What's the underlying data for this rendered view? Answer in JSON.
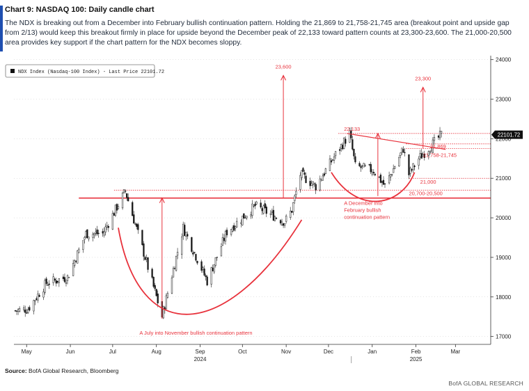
{
  "header": {
    "title": "Chart 9: NASDAQ 100: Daily candle chart",
    "description": "The NDX is breaking out from a December into February bullish continuation pattern. Holding the 21,869 to 21,758-21,745 area (breakout point and upside gap from 2/13) would keep this breakout firmly in place for upside beyond the December peak of 22,133 toward pattern counts at 23,300-23,600. The 21,000-20,500 area provides key support if the chart pattern for the NDX becomes sloppy."
  },
  "footer": {
    "source_label": "Source:",
    "source_text": "BofA Global Research, Bloomberg",
    "brand": "BofA GLOBAL RESEARCH"
  },
  "chart_data": {
    "type": "candlestick",
    "legend": "NDX Index (Nasdaq-100 Index) - Last Price 22101.72",
    "legend_position": "top-left",
    "last_price_label": "22101.72",
    "ylim": [
      16800,
      24100
    ],
    "y_ticks": [
      17000,
      18000,
      19000,
      20000,
      21000,
      22000,
      23000,
      24000
    ],
    "y_tick_labels": [
      "17000",
      "18000",
      "19000",
      "20000",
      "21000",
      "22000",
      "23000",
      "24000"
    ],
    "x_ticks": [
      {
        "label": "May",
        "date": "2024-05-01"
      },
      {
        "label": "Jun",
        "date": "2024-06-01"
      },
      {
        "label": "Jul",
        "date": "2024-07-01"
      },
      {
        "label": "Aug",
        "date": "2024-08-01"
      },
      {
        "label": "Sep",
        "date": "2024-09-01"
      },
      {
        "label": "Oct",
        "date": "2024-10-01"
      },
      {
        "label": "Nov",
        "date": "2024-11-01"
      },
      {
        "label": "Dec",
        "date": "2024-12-01"
      },
      {
        "label": "Jan",
        "date": "2025-01-01"
      },
      {
        "label": "Feb",
        "date": "2025-02-01"
      },
      {
        "label": "Mar",
        "date": "2025-03-01"
      }
    ],
    "year_labels": [
      {
        "label": "2024",
        "date": "2024-09-01"
      },
      {
        "label": "2025",
        "date": "2025-02-01"
      }
    ],
    "price_path": [
      {
        "date": "2024-04-23",
        "close": 17650
      },
      {
        "date": "2024-05-02",
        "close": 17700
      },
      {
        "date": "2024-05-15",
        "close": 18350
      },
      {
        "date": "2024-05-30",
        "close": 18500
      },
      {
        "date": "2024-06-12",
        "close": 19600
      },
      {
        "date": "2024-06-24",
        "close": 19600
      },
      {
        "date": "2024-07-10",
        "close": 20675
      },
      {
        "date": "2024-07-24",
        "close": 19000
      },
      {
        "date": "2024-08-05",
        "close": 17500
      },
      {
        "date": "2024-08-20",
        "close": 19750
      },
      {
        "date": "2024-09-06",
        "close": 18400
      },
      {
        "date": "2024-09-20",
        "close": 19650
      },
      {
        "date": "2024-10-10",
        "close": 20300
      },
      {
        "date": "2024-10-31",
        "close": 19900
      },
      {
        "date": "2024-11-05",
        "close": 20200
      },
      {
        "date": "2024-11-11",
        "close": 21100
      },
      {
        "date": "2024-11-22",
        "close": 20800
      },
      {
        "date": "2024-12-06",
        "close": 21600
      },
      {
        "date": "2024-12-16",
        "close": 22133
      },
      {
        "date": "2024-12-20",
        "close": 21300
      },
      {
        "date": "2025-01-02",
        "close": 21200
      },
      {
        "date": "2025-01-10",
        "close": 20800
      },
      {
        "date": "2025-01-23",
        "close": 21750
      },
      {
        "date": "2025-01-27",
        "close": 21100
      },
      {
        "date": "2025-02-03",
        "close": 21500
      },
      {
        "date": "2025-02-13",
        "close": 21870
      },
      {
        "date": "2025-02-19",
        "close": 22101
      }
    ],
    "horizontal_levels": [
      {
        "label": "22,133",
        "value": 22133,
        "style": "dotted"
      },
      {
        "label": "21,869",
        "value": 21869,
        "style": "dotted"
      },
      {
        "label": "21,758-21,745",
        "value": 21752,
        "style": "dotted"
      },
      {
        "label": "21,000",
        "value": 21000,
        "style": "dotted"
      },
      {
        "label": "20,700-20,500",
        "value": 20700,
        "style": "dotted"
      },
      {
        "label": "",
        "value": 20500,
        "style": "solid"
      }
    ],
    "targets": [
      {
        "label": "23,600",
        "value": 23600
      },
      {
        "label": "23,300",
        "value": 23300
      }
    ],
    "annotations": [
      "A July into November bullish continuation pattern",
      "A December into February bullish continuation pattern"
    ],
    "colors": {
      "annotation": "#e8323c",
      "candle": "#1a1a1a",
      "grid": "#c8c8c8"
    }
  }
}
